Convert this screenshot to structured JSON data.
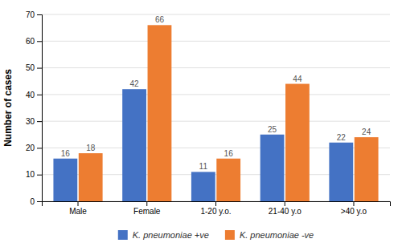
{
  "chart_data": {
    "type": "bar",
    "categories": [
      "Male",
      "Female",
      "1-20 y.o.",
      "21-40 y.o",
      ">40 y.o"
    ],
    "series": [
      {
        "name": "K. pneumoniae +ve",
        "color": "#4472C4",
        "values": [
          16,
          42,
          11,
          25,
          22
        ]
      },
      {
        "name": "K. pneumoniae -ve",
        "color": "#ED7D31",
        "values": [
          18,
          66,
          16,
          44,
          24
        ]
      }
    ],
    "ylabel": "Number of cases",
    "ylim": [
      0,
      70
    ],
    "yticks": [
      0,
      10,
      20,
      30,
      40,
      50,
      60,
      70
    ],
    "grid": true,
    "legend": "bottom",
    "data_labels": true
  }
}
